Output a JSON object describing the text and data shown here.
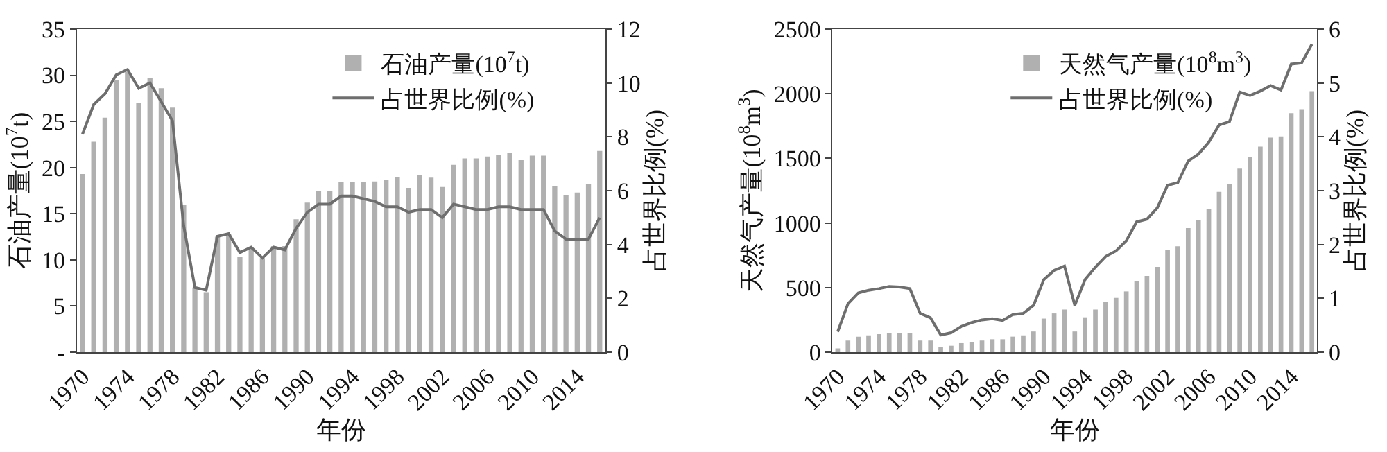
{
  "chart_data": [
    {
      "type": "bar",
      "xlabel": "年份",
      "ylabel": "石油产量(10$^{7}$t)",
      "y2label": "占世界比例(%)",
      "x": [
        1970,
        1971,
        1972,
        1973,
        1974,
        1975,
        1976,
        1977,
        1978,
        1979,
        1980,
        1981,
        1982,
        1983,
        1984,
        1985,
        1986,
        1987,
        1988,
        1989,
        1990,
        1991,
        1992,
        1993,
        1994,
        1995,
        1996,
        1997,
        1998,
        1999,
        2000,
        2001,
        2002,
        2003,
        2004,
        2005,
        2006,
        2007,
        2008,
        2009,
        2010,
        2011,
        2012,
        2013,
        2014,
        2015,
        2016
      ],
      "series": [
        {
          "name": "石油产量(10$^{7}$t)",
          "color": "#b0b0b0",
          "values": [
            19.3,
            22.8,
            25.4,
            29.5,
            30.4,
            27,
            29.7,
            28.6,
            26.5,
            16,
            7,
            6.5,
            12.5,
            12.8,
            10.3,
            11.2,
            10.2,
            11.5,
            11.5,
            14.4,
            16.2,
            17.5,
            17.5,
            18.4,
            18.4,
            18.4,
            18.5,
            18.7,
            19,
            17.8,
            19.2,
            18.9,
            17.9,
            20.3,
            21,
            21,
            21.2,
            21.4,
            21.6,
            20.8,
            21.3,
            21.3,
            18,
            17,
            17.3,
            18.2,
            21.8
          ]
        },
        {
          "name": "占世界比例(%)",
          "type": "line",
          "axis": "y2",
          "color": "#6e6e6e",
          "values": [
            8.1,
            9.2,
            9.6,
            10.3,
            10.5,
            9.8,
            10,
            9.3,
            8.6,
            4.7,
            2.4,
            2.3,
            4.3,
            4.4,
            3.7,
            3.9,
            3.5,
            3.9,
            3.8,
            4.6,
            5.2,
            5.5,
            5.5,
            5.8,
            5.8,
            5.7,
            5.6,
            5.4,
            5.4,
            5.2,
            5.3,
            5.3,
            5.0,
            5.5,
            5.4,
            5.3,
            5.3,
            5.4,
            5.4,
            5.3,
            5.3,
            5.3,
            4.5,
            4.2,
            4.2,
            4.2,
            5.0
          ]
        }
      ],
      "xlim": [
        1969.5,
        2016.5
      ],
      "xticks": [
        1970,
        1974,
        1978,
        1982,
        1986,
        1990,
        1994,
        1998,
        2002,
        2006,
        2010,
        2014
      ],
      "ylim": [
        0,
        35
      ],
      "yticks": [
        {
          "value": 0,
          "label": "-"
        },
        5,
        10,
        15,
        20,
        25,
        30,
        35
      ],
      "y2lim": [
        0,
        12
      ],
      "y2ticks": [
        0,
        2,
        4,
        6,
        8,
        10,
        12
      ],
      "legend": "top right",
      "grid": false,
      "marker": "none",
      "line_style": "solid"
    },
    {
      "type": "bar",
      "xlabel": "年份",
      "ylabel": "天然气产量(10$^{8}$m$^{3}$)",
      "y2label": "占世界比例(%)",
      "x": [
        1970,
        1971,
        1972,
        1973,
        1974,
        1975,
        1976,
        1977,
        1978,
        1979,
        1980,
        1981,
        1982,
        1983,
        1984,
        1985,
        1986,
        1987,
        1988,
        1989,
        1990,
        1991,
        1992,
        1993,
        1994,
        1995,
        1996,
        1997,
        1998,
        1999,
        2000,
        2001,
        2002,
        2003,
        2004,
        2005,
        2006,
        2007,
        2008,
        2009,
        2010,
        2011,
        2012,
        2013,
        2014,
        2015,
        2016
      ],
      "series": [
        {
          "name": "天然气产量(10$^{8}$m$^{3}$)",
          "color": "#b0b0b0",
          "values": [
            30,
            90,
            120,
            130,
            140,
            150,
            150,
            150,
            90,
            90,
            40,
            50,
            70,
            80,
            90,
            100,
            100,
            120,
            130,
            160,
            260,
            300,
            330,
            160,
            270,
            330,
            390,
            420,
            470,
            550,
            590,
            660,
            790,
            820,
            960,
            1020,
            1110,
            1240,
            1300,
            1420,
            1510,
            1590,
            1660,
            1670,
            1850,
            1880,
            2020
          ]
        },
        {
          "name": "占世界比例(%)",
          "type": "line",
          "axis": "y2",
          "color": "#6e6e6e",
          "values": [
            0.38,
            0.9,
            1.1,
            1.15,
            1.18,
            1.22,
            1.21,
            1.18,
            0.72,
            0.64,
            0.32,
            0.36,
            0.48,
            0.55,
            0.6,
            0.62,
            0.59,
            0.7,
            0.72,
            0.87,
            1.35,
            1.52,
            1.6,
            0.87,
            1.35,
            1.58,
            1.78,
            1.88,
            2.07,
            2.42,
            2.47,
            2.68,
            3.1,
            3.15,
            3.55,
            3.68,
            3.9,
            4.22,
            4.28,
            4.83,
            4.77,
            4.85,
            4.95,
            4.87,
            5.35,
            5.37,
            5.72
          ]
        }
      ],
      "xlim": [
        1969.5,
        2016.5
      ],
      "xticks": [
        1970,
        1974,
        1978,
        1982,
        1986,
        1990,
        1994,
        1998,
        2002,
        2006,
        2010,
        2014
      ],
      "ylim": [
        0,
        2500
      ],
      "yticks": [
        0,
        500,
        1000,
        1500,
        2000,
        2500
      ],
      "y2lim": [
        0,
        6
      ],
      "y2ticks": [
        0,
        1,
        2,
        3,
        4,
        5,
        6
      ],
      "legend": "top right",
      "grid": false,
      "marker": "none",
      "line_style": "solid"
    }
  ]
}
